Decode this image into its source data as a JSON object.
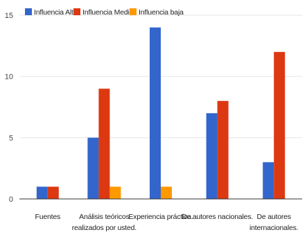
{
  "chart_data": {
    "type": "bar",
    "categories": [
      [
        "Fuentes"
      ],
      [
        "Análisis teóricos",
        "realizados por usted."
      ],
      [
        "Experiencia práctica."
      ],
      [
        "De autores nacionales."
      ],
      [
        "De autores",
        "internacionales."
      ]
    ],
    "series": [
      {
        "name": "Influencia Alta",
        "color": "#3366cc",
        "values": [
          1,
          5,
          14,
          7,
          3
        ]
      },
      {
        "name": "Influencia Media",
        "color": "#dc3912",
        "values": [
          1,
          9,
          0,
          8,
          12
        ]
      },
      {
        "name": "Influencia baja",
        "color": "#ff9900",
        "values": [
          0,
          1,
          1,
          0,
          0
        ]
      }
    ],
    "y_ticks": [
      0,
      5,
      10,
      15
    ],
    "ylim": [
      0,
      15
    ],
    "grid": true,
    "legend_position": "top-left"
  }
}
